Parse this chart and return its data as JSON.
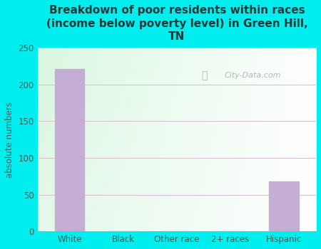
{
  "title": "Breakdown of poor residents within races\n(income below poverty level) in Green Hill,\nTN",
  "categories": [
    "White",
    "Black",
    "Other race",
    "2+ races",
    "Hispanic"
  ],
  "values": [
    221,
    0,
    0,
    0,
    68
  ],
  "bar_color": "#c4aed4",
  "ylabel": "absolute numbers",
  "ylim": [
    0,
    250
  ],
  "yticks": [
    0,
    50,
    100,
    150,
    200,
    250
  ],
  "bg_outer": "#00eeee",
  "title_fontsize": 11,
  "title_color": "#1a3a3a",
  "tick_label_color": "#555555",
  "watermark_text": "City-Data.com",
  "watermark_color": "#aaaaaa",
  "grid_color": "#ddbbcc"
}
